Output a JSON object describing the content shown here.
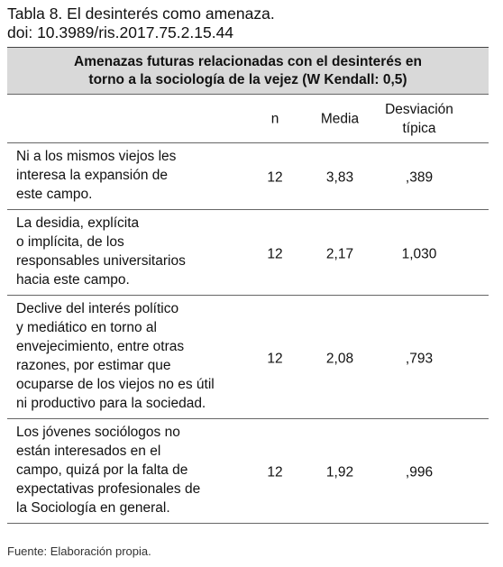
{
  "caption": {
    "title": "Tabla 8. El desinterés como amenaza.",
    "doi": "doi: 10.3989/ris.2017.75.2.15.44"
  },
  "table": {
    "title": [
      "Amenazas futuras relacionadas con el desinterés en",
      "torno  a la sociología de la vejez (W Kendall: 0,5)"
    ],
    "columns": [
      [
        "n"
      ],
      [
        "Media"
      ],
      [
        "Desviación",
        "típica"
      ]
    ],
    "rows": [
      {
        "label": [
          "Ni a los mismos viejos les",
          "interesa la expansión de",
          "este campo."
        ],
        "n": "12",
        "media": "3,83",
        "desviacion": ",389"
      },
      {
        "label": [
          "La desidia, explícita",
          "o implícita, de los",
          "responsables universitarios",
          "hacia este campo."
        ],
        "n": "12",
        "media": "2,17",
        "desviacion": "1,030"
      },
      {
        "label": [
          "Declive del interés político",
          "y mediático en torno al",
          "envejecimiento, entre otras",
          "razones, por estimar que",
          "ocuparse de los viejos no es útil",
          "ni productivo para la sociedad."
        ],
        "n": "12",
        "media": "2,08",
        "desviacion": ",793"
      },
      {
        "label": [
          "Los jóvenes sociólogos no",
          "están interesados en el",
          "campo, quizá por la falta de",
          "expectativas profesionales de",
          "la Sociología en general."
        ],
        "n": "12",
        "media": "1,92",
        "desviacion": ",996"
      }
    ]
  },
  "source": "Fuente: Elaboración propia."
}
